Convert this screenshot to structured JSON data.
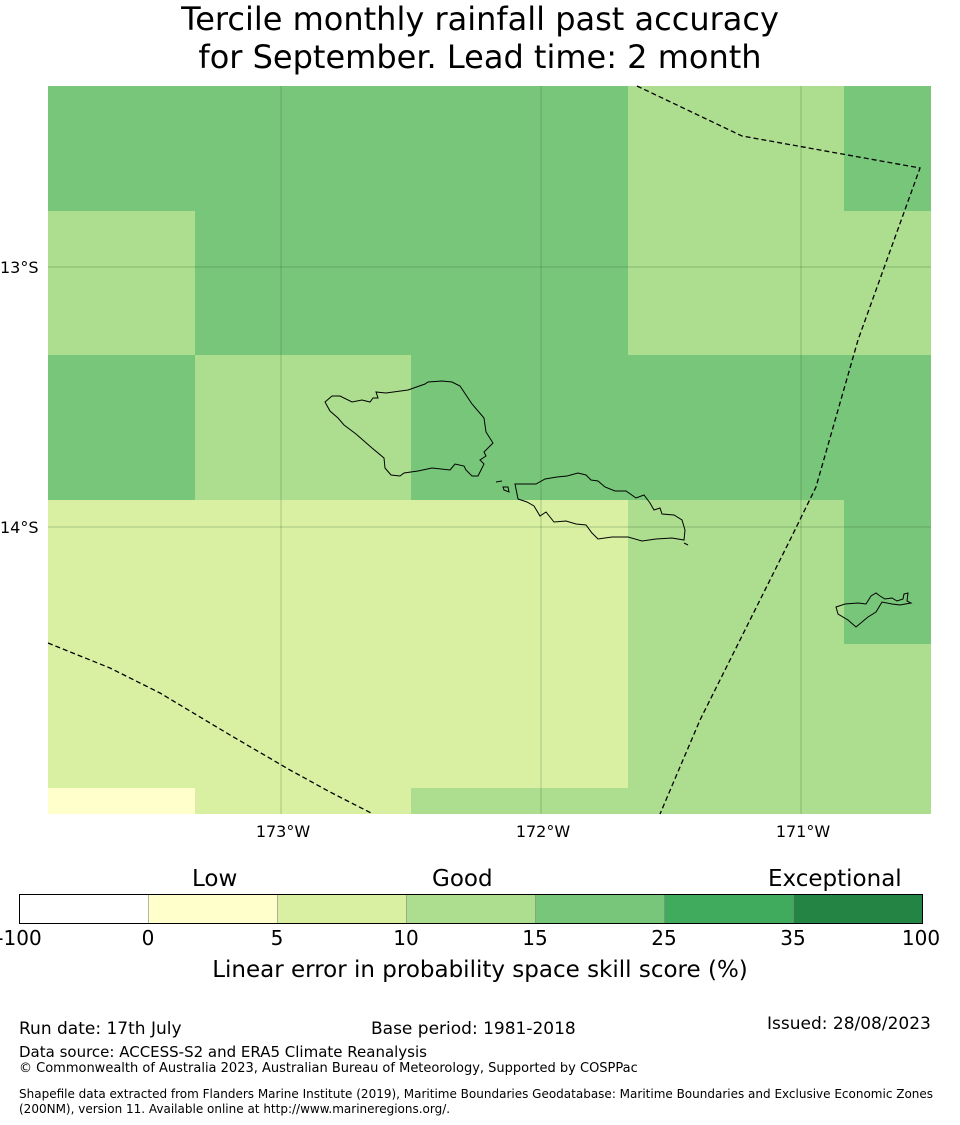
{
  "title": {
    "line1": "Tercile monthly rainfall past accuracy",
    "line2": "for September. Lead time: 2 month"
  },
  "map": {
    "lat_labels": [
      "13°S",
      "14°S"
    ],
    "lon_labels": [
      "173°W",
      "172°W",
      "171°W"
    ],
    "colors": {
      "c1": "#ffffcc",
      "c2": "#d9f0a3",
      "c3": "#addd8e",
      "c4": "#78c679",
      "c5": "#41ab5d",
      "c6": "#238443"
    },
    "grid_rows": [
      [
        "c4",
        "c4",
        "c4",
        "c4",
        "c4",
        "c4",
        "c3",
        "c3",
        "c3",
        "c4"
      ],
      [
        "c3",
        "c3",
        "c4",
        "c4",
        "c4",
        "c4",
        "c3",
        "c3",
        "c3",
        "c3"
      ],
      [
        "c4",
        "c4",
        "c3",
        "c3",
        "c4",
        "c4",
        "c4",
        "c4",
        "c4",
        "c4"
      ],
      [
        "c2",
        "c2",
        "c2",
        "c2",
        "c2",
        "c2",
        "c3",
        "c3",
        "c3",
        "c4"
      ],
      [
        "c2",
        "c2",
        "c2",
        "c2",
        "c2",
        "c2",
        "c3",
        "c3",
        "c3",
        "c3"
      ],
      [
        "c1",
        "c2",
        "c2",
        "c3",
        "c3",
        "c3",
        "c3",
        "c3",
        "c3",
        "c3"
      ]
    ]
  },
  "legend": {
    "words": [
      "Low",
      "Good",
      "Exceptional"
    ],
    "ticks": [
      "-100",
      "0",
      "5",
      "10",
      "15",
      "25",
      "35",
      "100"
    ],
    "colors": [
      "#ffffff",
      "#ffffcc",
      "#d9f0a3",
      "#addd8e",
      "#78c679",
      "#41ab5d",
      "#238443"
    ],
    "label": "Linear error in probability space skill score (%)"
  },
  "footer": {
    "run_date": "Run date: 17th July",
    "base_period": "Base period: 1981-2018",
    "issued": "Issued: 28/08/2023",
    "data_source": "Data source: ACCESS-S2 and ERA5 Climate Reanalysis",
    "copyright": "© Commonwealth of Australia 2023, Australian Bureau of Meteorology, Supported by COSPPac",
    "shapefile_line1": "Shapefile data extracted from Flanders Marine Institute (2019), Maritime Boundaries Geodatabase: Maritime Boundaries and Exclusive Economic Zones",
    "shapefile_line2": "(200NM), version 11. Available online at http://www.marineregions.org/."
  }
}
